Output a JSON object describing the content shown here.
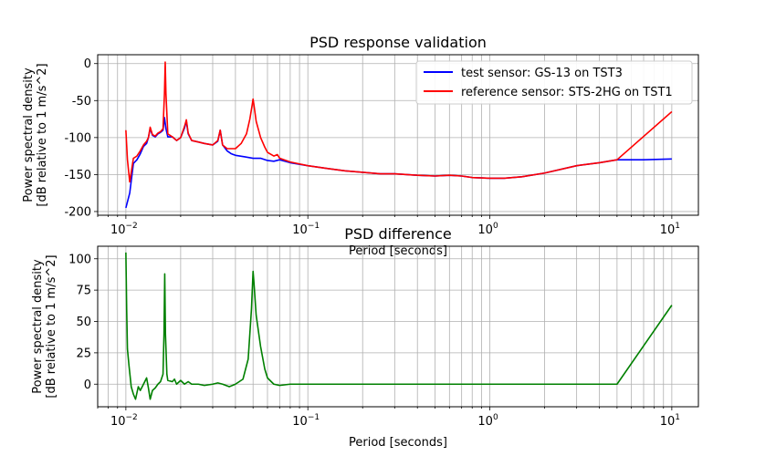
{
  "chart_data": [
    {
      "type": "line",
      "title": "PSD response validation",
      "xlabel": "Period [seconds]",
      "ylabel": [
        "Power spectral density",
        "[dB relative to 1 m/s^2]"
      ],
      "xscale": "log",
      "xlim": [
        0.007,
        14
      ],
      "ylim": [
        -205,
        12
      ],
      "yticks": [
        0,
        -50,
        -100,
        -150,
        -200
      ],
      "xticks": [
        {
          "value": 0.01,
          "base": "10",
          "exp": "−2"
        },
        {
          "value": 0.1,
          "base": "10",
          "exp": "−1"
        },
        {
          "value": 1,
          "base": "10",
          "exp": "0"
        },
        {
          "value": 10,
          "base": "10",
          "exp": "1"
        }
      ],
      "grid": "both-major-minor",
      "legend": "top-right",
      "series": [
        {
          "name": "test sensor: GS-13 on TST3",
          "color": "#0000ff",
          "points": [
            [
              0.01,
              -195
            ],
            [
              0.0105,
              -175
            ],
            [
              0.011,
              -135
            ],
            [
              0.0115,
              -130
            ],
            [
              0.012,
              -122
            ],
            [
              0.0125,
              -112
            ],
            [
              0.013,
              -108
            ],
            [
              0.0133,
              -100
            ],
            [
              0.0136,
              -88
            ],
            [
              0.014,
              -97
            ],
            [
              0.0145,
              -99
            ],
            [
              0.015,
              -95
            ],
            [
              0.0155,
              -93
            ],
            [
              0.016,
              -90
            ],
            [
              0.0163,
              -73
            ],
            [
              0.0166,
              -88
            ],
            [
              0.017,
              -99
            ],
            [
              0.018,
              -99
            ],
            [
              0.019,
              -104
            ],
            [
              0.02,
              -100
            ],
            [
              0.021,
              -87
            ],
            [
              0.0215,
              -78
            ],
            [
              0.022,
              -95
            ],
            [
              0.023,
              -104
            ],
            [
              0.025,
              -106
            ],
            [
              0.027,
              -108
            ],
            [
              0.03,
              -110
            ],
            [
              0.032,
              -105
            ],
            [
              0.033,
              -90
            ],
            [
              0.034,
              -110
            ],
            [
              0.036,
              -118
            ],
            [
              0.038,
              -122
            ],
            [
              0.04,
              -124
            ],
            [
              0.045,
              -126
            ],
            [
              0.05,
              -128
            ],
            [
              0.055,
              -128
            ],
            [
              0.06,
              -131
            ],
            [
              0.065,
              -132
            ],
            [
              0.07,
              -130
            ],
            [
              0.08,
              -134
            ],
            [
              0.1,
              -138
            ],
            [
              0.13,
              -142
            ],
            [
              0.16,
              -145
            ],
            [
              0.2,
              -147
            ],
            [
              0.25,
              -149
            ],
            [
              0.3,
              -149
            ],
            [
              0.35,
              -150
            ],
            [
              0.4,
              -151
            ],
            [
              0.5,
              -152
            ],
            [
              0.6,
              -151
            ],
            [
              0.7,
              -152
            ],
            [
              0.8,
              -154
            ],
            [
              1,
              -155
            ],
            [
              1.2,
              -155
            ],
            [
              1.5,
              -153
            ],
            [
              2,
              -148
            ],
            [
              3,
              -138
            ],
            [
              4,
              -134
            ],
            [
              5,
              -130
            ],
            [
              7,
              -130
            ],
            [
              10,
              -129
            ]
          ]
        },
        {
          "name": "reference sensor: STS-2HG on TST1",
          "color": "#ff0000",
          "points": [
            [
              0.01,
              -90
            ],
            [
              0.0102,
              -130
            ],
            [
              0.0105,
              -160
            ],
            [
              0.011,
              -128
            ],
            [
              0.0115,
              -125
            ],
            [
              0.012,
              -118
            ],
            [
              0.0125,
              -110
            ],
            [
              0.013,
              -105
            ],
            [
              0.0133,
              -100
            ],
            [
              0.0136,
              -86
            ],
            [
              0.014,
              -96
            ],
            [
              0.0145,
              -98
            ],
            [
              0.015,
              -94
            ],
            [
              0.0155,
              -92
            ],
            [
              0.016,
              -88
            ],
            [
              0.0163,
              -40
            ],
            [
              0.01645,
              2
            ],
            [
              0.0166,
              -40
            ],
            [
              0.017,
              -95
            ],
            [
              0.018,
              -99
            ],
            [
              0.019,
              -104
            ],
            [
              0.02,
              -100
            ],
            [
              0.021,
              -85
            ],
            [
              0.0215,
              -76
            ],
            [
              0.022,
              -94
            ],
            [
              0.023,
              -104
            ],
            [
              0.025,
              -106
            ],
            [
              0.027,
              -108
            ],
            [
              0.03,
              -110
            ],
            [
              0.032,
              -104
            ],
            [
              0.033,
              -90
            ],
            [
              0.034,
              -110
            ],
            [
              0.036,
              -115
            ],
            [
              0.04,
              -115
            ],
            [
              0.043,
              -108
            ],
            [
              0.046,
              -95
            ],
            [
              0.048,
              -75
            ],
            [
              0.0495,
              -55
            ],
            [
              0.05,
              -48
            ],
            [
              0.0505,
              -55
            ],
            [
              0.052,
              -78
            ],
            [
              0.055,
              -100
            ],
            [
              0.058,
              -113
            ],
            [
              0.06,
              -120
            ],
            [
              0.065,
              -125
            ],
            [
              0.068,
              -123
            ],
            [
              0.07,
              -128
            ],
            [
              0.08,
              -133
            ],
            [
              0.1,
              -138
            ],
            [
              0.13,
              -142
            ],
            [
              0.16,
              -145
            ],
            [
              0.2,
              -147
            ],
            [
              0.25,
              -149
            ],
            [
              0.3,
              -149
            ],
            [
              0.35,
              -150
            ],
            [
              0.4,
              -151
            ],
            [
              0.5,
              -152
            ],
            [
              0.6,
              -151
            ],
            [
              0.7,
              -152
            ],
            [
              0.8,
              -154
            ],
            [
              1,
              -155
            ],
            [
              1.2,
              -155
            ],
            [
              1.5,
              -153
            ],
            [
              2,
              -148
            ],
            [
              3,
              -138
            ],
            [
              4,
              -134
            ],
            [
              5,
              -130
            ],
            [
              10,
              -65
            ]
          ]
        }
      ]
    },
    {
      "type": "line",
      "title": "PSD difference",
      "xlabel": "Period [seconds]",
      "ylabel": [
        "Power spectral density",
        "[dB relative to 1 m/s^2]"
      ],
      "xscale": "log",
      "xlim": [
        0.007,
        14
      ],
      "ylim": [
        -18,
        110
      ],
      "yticks": [
        100,
        75,
        50,
        25,
        0
      ],
      "xticks": [
        {
          "value": 0.01,
          "base": "10",
          "exp": "−2"
        },
        {
          "value": 0.1,
          "base": "10",
          "exp": "−1"
        },
        {
          "value": 1,
          "base": "10",
          "exp": "0"
        },
        {
          "value": 10,
          "base": "10",
          "exp": "1"
        }
      ],
      "grid": "both-major-minor",
      "series": [
        {
          "color": "#008000",
          "points": [
            [
              0.01,
              105
            ],
            [
              0.0101,
              60
            ],
            [
              0.0102,
              28
            ],
            [
              0.0104,
              15
            ],
            [
              0.0107,
              -2
            ],
            [
              0.011,
              -8
            ],
            [
              0.0113,
              -12
            ],
            [
              0.0117,
              -2
            ],
            [
              0.012,
              -5
            ],
            [
              0.0125,
              0
            ],
            [
              0.013,
              5
            ],
            [
              0.0133,
              -3
            ],
            [
              0.0136,
              -12
            ],
            [
              0.014,
              -5
            ],
            [
              0.0145,
              -3
            ],
            [
              0.015,
              0
            ],
            [
              0.0155,
              2
            ],
            [
              0.016,
              8
            ],
            [
              0.0162,
              40
            ],
            [
              0.01635,
              88
            ],
            [
              0.0165,
              40
            ],
            [
              0.0168,
              8
            ],
            [
              0.017,
              3
            ],
            [
              0.018,
              2
            ],
            [
              0.0185,
              4
            ],
            [
              0.019,
              0
            ],
            [
              0.02,
              3
            ],
            [
              0.021,
              0
            ],
            [
              0.022,
              2
            ],
            [
              0.023,
              0
            ],
            [
              0.025,
              0
            ],
            [
              0.027,
              -1
            ],
            [
              0.03,
              0
            ],
            [
              0.032,
              1
            ],
            [
              0.034,
              0
            ],
            [
              0.037,
              -2
            ],
            [
              0.04,
              0
            ],
            [
              0.044,
              4
            ],
            [
              0.047,
              20
            ],
            [
              0.049,
              60
            ],
            [
              0.05,
              90
            ],
            [
              0.0505,
              82
            ],
            [
              0.052,
              55
            ],
            [
              0.055,
              30
            ],
            [
              0.058,
              12
            ],
            [
              0.06,
              5
            ],
            [
              0.065,
              0
            ],
            [
              0.07,
              -1
            ],
            [
              0.08,
              0
            ],
            [
              0.1,
              0
            ],
            [
              0.2,
              0
            ],
            [
              0.5,
              0
            ],
            [
              1,
              0
            ],
            [
              2,
              0
            ],
            [
              5,
              0
            ],
            [
              10,
              63
            ]
          ]
        }
      ]
    }
  ]
}
